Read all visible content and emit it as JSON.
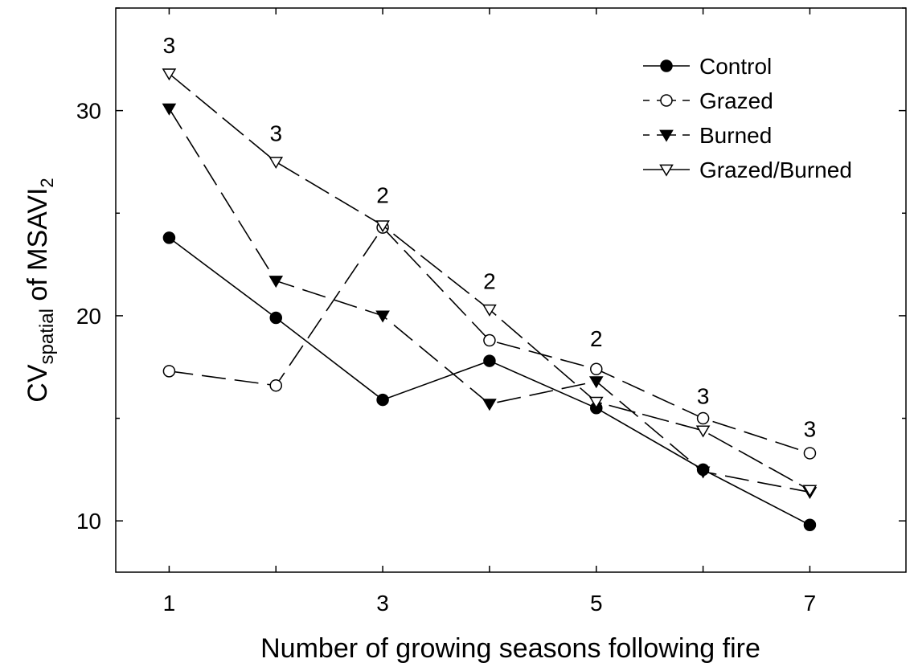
{
  "chart_data": {
    "type": "line",
    "xlabel": "Number of growing seasons following fire",
    "ylabel_main": "CV",
    "ylabel_sub": "spatial",
    "ylabel_rest": " of MSAVI",
    "ylabel_sub2": "2",
    "x": [
      1,
      2,
      3,
      4,
      5,
      6,
      7
    ],
    "xlim": [
      0.5,
      7.9
    ],
    "ylim": [
      7.5,
      35.0
    ],
    "x_ticks": [
      1,
      3,
      5,
      7
    ],
    "y_ticks": [
      10,
      20,
      30
    ],
    "grid": false,
    "legend_position": "top-right",
    "series": [
      {
        "name": "Control",
        "marker": "filled-circle",
        "line": "solid",
        "values": [
          23.8,
          19.9,
          15.9,
          17.8,
          15.5,
          12.5,
          9.8
        ]
      },
      {
        "name": "Grazed",
        "marker": "open-circle",
        "line": "long-dash",
        "values": [
          17.3,
          16.6,
          24.3,
          18.8,
          17.4,
          15.0,
          13.3
        ]
      },
      {
        "name": "Burned",
        "marker": "filled-triangle-down",
        "line": "long-dash",
        "values": [
          30.1,
          21.7,
          20.0,
          15.7,
          16.8,
          12.4,
          11.4
        ]
      },
      {
        "name": "Grazed/Burned",
        "marker": "open-triangle-down",
        "line": "dash-solid",
        "values": [
          31.8,
          27.5,
          24.4,
          20.3,
          15.8,
          14.4,
          11.5
        ]
      }
    ],
    "annotations": [
      {
        "x": 1,
        "y": 33.2,
        "text": "3"
      },
      {
        "x": 2,
        "y": 28.9,
        "text": "3"
      },
      {
        "x": 3,
        "y": 25.9,
        "text": "2"
      },
      {
        "x": 4,
        "y": 21.7,
        "text": "2"
      },
      {
        "x": 5,
        "y": 18.9,
        "text": "2"
      },
      {
        "x": 6,
        "y": 16.1,
        "text": "3"
      },
      {
        "x": 7,
        "y": 14.5,
        "text": "3"
      }
    ]
  }
}
